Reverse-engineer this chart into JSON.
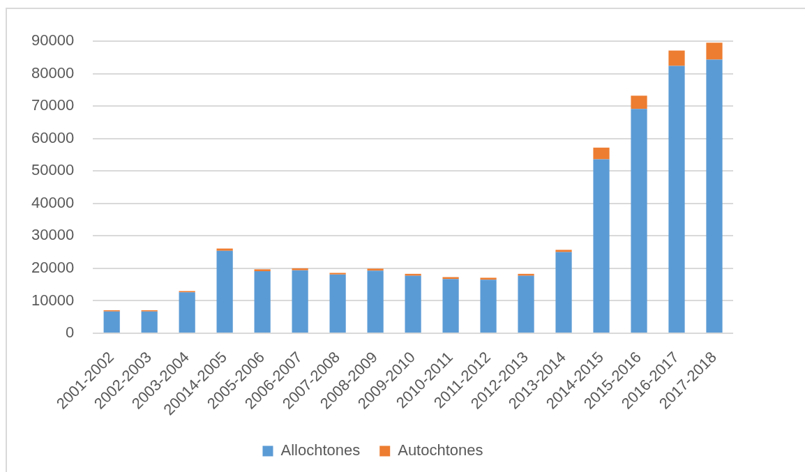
{
  "chart_data": {
    "type": "bar",
    "stacked": true,
    "categories": [
      "2001-2002",
      "2002-2003",
      "2003-2004",
      "20014-2005",
      "2005-2006",
      "2006-2007",
      "2007-2008",
      "2008-2009",
      "2009-2010",
      "2010-2011",
      "2011-2012",
      "2012-2013",
      "2013-2014",
      "2014-2015",
      "2015-2016",
      "2016-2017",
      "2017-2018"
    ],
    "series": [
      {
        "name": "Allochtones",
        "color": "#5b9bd5",
        "values": [
          6700,
          6700,
          12600,
          25400,
          19100,
          19400,
          18100,
          19300,
          17700,
          16700,
          16500,
          17700,
          25000,
          53600,
          69100,
          82400,
          84300
        ]
      },
      {
        "name": "Autochtones",
        "color": "#ed7d31",
        "values": [
          400,
          400,
          400,
          700,
          600,
          600,
          500,
          600,
          600,
          600,
          600,
          600,
          700,
          3600,
          4100,
          4700,
          5200
        ]
      }
    ],
    "ylim": [
      0,
      90000
    ],
    "yticks": [
      0,
      10000,
      20000,
      30000,
      40000,
      50000,
      60000,
      70000,
      80000,
      90000
    ],
    "grid": "y",
    "legend": "bottom"
  }
}
